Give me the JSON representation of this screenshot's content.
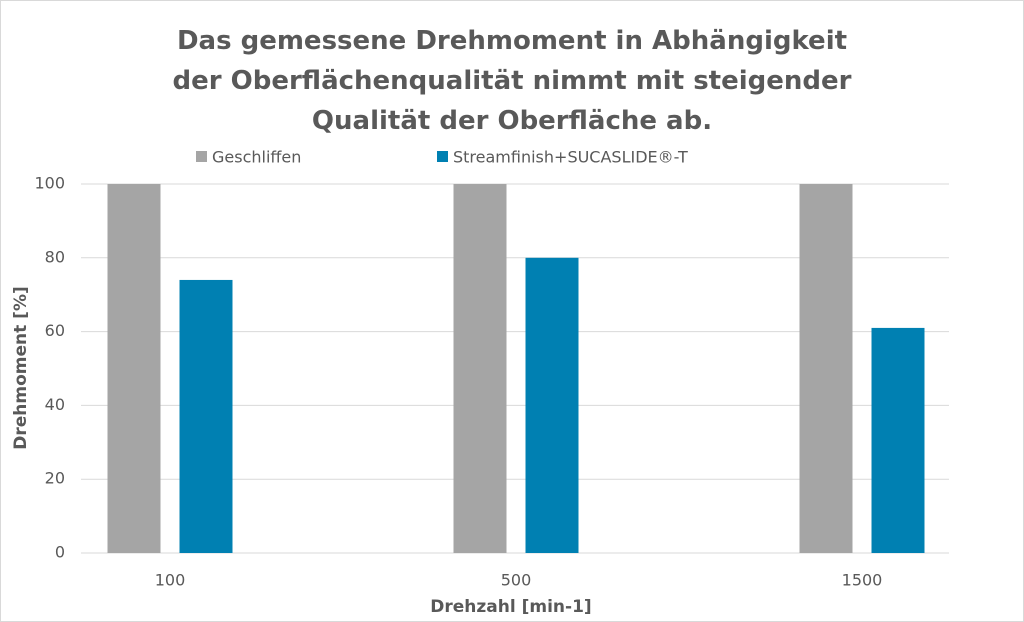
{
  "chart_data": {
    "type": "bar",
    "title": "Das gemessene Drehmoment in Abhängigkeit der Oberflächenqualität nimmt mit steigender Qualität der Oberfläche ab.",
    "x_label": "Drehzahl [min-1]",
    "y_label": "Drehmoment [%]",
    "categories": [
      "100",
      "500",
      "1500"
    ],
    "series": [
      {
        "name": "Geschliffen",
        "color": "#a5a5a5",
        "values": [
          100,
          100,
          100
        ]
      },
      {
        "name": "Streamfinish+SUCASLIDE®-T",
        "color": "#0080b2",
        "values": [
          74,
          80,
          61
        ]
      }
    ],
    "ylim": [
      0,
      100
    ],
    "yticks": [
      0,
      20,
      40,
      60,
      80,
      100
    ],
    "grid": true
  }
}
